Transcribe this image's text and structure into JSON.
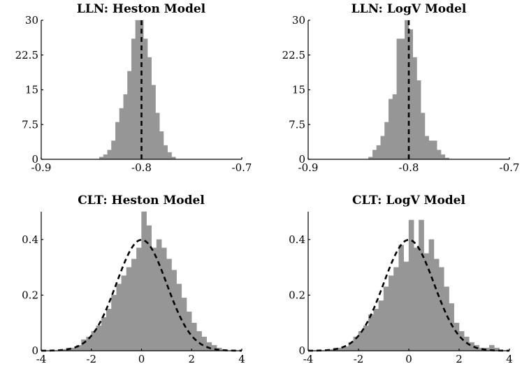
{
  "chart_data": [
    {
      "type": "bar",
      "title": "LLN: Heston Model",
      "xlim": [
        -0.9,
        -0.7
      ],
      "ylim": [
        0,
        30
      ],
      "xticks": [
        "-0.9",
        "-0.8",
        "-0.7"
      ],
      "yticks": [
        "0",
        "7.5",
        "15",
        "22.5",
        "30"
      ],
      "bin_width": 0.004,
      "bin_start": -0.842,
      "values": [
        0.5,
        1,
        2,
        4,
        8,
        11,
        14,
        19,
        26,
        30,
        30,
        26,
        22,
        16,
        10,
        6,
        3,
        1.5,
        0.5
      ],
      "reference_line": {
        "x": -0.8,
        "style": "dashed",
        "orientation": "vertical"
      },
      "grid": false
    },
    {
      "type": "bar",
      "title": "LLN: LogV Model",
      "xlim": [
        -0.9,
        -0.7
      ],
      "ylim": [
        0,
        30
      ],
      "xticks": [
        "-0.9",
        "-0.8",
        "-0.7"
      ],
      "yticks": [
        "0",
        "7.5",
        "15",
        "22.5",
        "30"
      ],
      "bin_width": 0.004,
      "bin_start": -0.84,
      "values": [
        0.5,
        2,
        3,
        5,
        8,
        13,
        14,
        26,
        26,
        30,
        28,
        22,
        17,
        10,
        5,
        4,
        4,
        2,
        1,
        0.3
      ],
      "reference_line": {
        "x": -0.8,
        "style": "dashed",
        "orientation": "vertical"
      },
      "grid": false
    },
    {
      "type": "bar",
      "title": "CLT: Heston Model",
      "xlim": [
        -4,
        4
      ],
      "ylim": [
        0,
        0.5
      ],
      "xticks": [
        "-4",
        "-2",
        "0",
        "2",
        "4"
      ],
      "yticks": [
        "0",
        "0.2",
        "0.4"
      ],
      "bin_width": 0.2,
      "bin_start": -3.2,
      "values": [
        0.005,
        0.01,
        0.01,
        0.02,
        0.04,
        0.05,
        0.07,
        0.09,
        0.12,
        0.15,
        0.2,
        0.24,
        0.27,
        0.3,
        0.33,
        0.37,
        0.5,
        0.45,
        0.37,
        0.4,
        0.37,
        0.33,
        0.29,
        0.24,
        0.19,
        0.14,
        0.1,
        0.07,
        0.05,
        0.03,
        0.02,
        0.01,
        0.005
      ],
      "reference_curve": {
        "type": "normal-pdf",
        "mean": 0,
        "sd": 1,
        "style": "dashed"
      },
      "grid": false
    },
    {
      "type": "bar",
      "title": "CLT: LogV Model",
      "xlim": [
        -4,
        4
      ],
      "ylim": [
        0,
        0.5
      ],
      "xticks": [
        "-4",
        "-2",
        "0",
        "2",
        "4"
      ],
      "yticks": [
        "0",
        "0.2",
        "0.4"
      ],
      "bin_width": 0.2,
      "bin_start": -3.2,
      "values": [
        0.005,
        0.01,
        0.01,
        0.015,
        0.03,
        0.05,
        0.07,
        0.09,
        0.13,
        0.15,
        0.18,
        0.23,
        0.27,
        0.3,
        0.38,
        0.32,
        0.47,
        0.37,
        0.47,
        0.35,
        0.4,
        0.33,
        0.3,
        0.23,
        0.17,
        0.1,
        0.07,
        0.05,
        0.03,
        0.02,
        0.01,
        0.01,
        0.02,
        0.01
      ],
      "reference_curve": {
        "type": "normal-pdf",
        "mean": 0,
        "sd": 1,
        "style": "dashed"
      },
      "grid": false
    }
  ]
}
